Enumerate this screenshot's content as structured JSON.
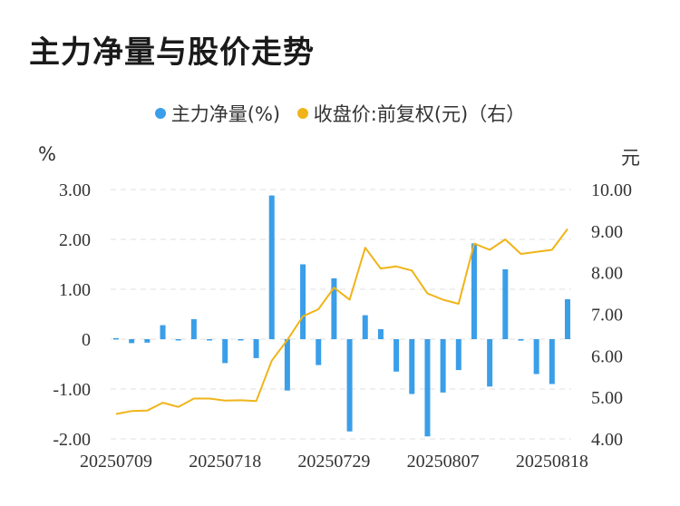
{
  "title": "主力净量与股价走势",
  "legend": {
    "bar_label": "主力净量(%)",
    "line_label": "收盘价:前复权(元)（右）"
  },
  "units": {
    "left": "%",
    "right": "元"
  },
  "colors": {
    "bar": "#3a9ee8",
    "line": "#f0b419",
    "grid": "#e5e5e5"
  },
  "chart_data": {
    "type": "bar+line",
    "x_tick_labels": [
      "20250709",
      "20250718",
      "20250729",
      "20250807",
      "20250818"
    ],
    "x_tick_indices": [
      0,
      7,
      14,
      21,
      28
    ],
    "left_axis": {
      "ylim": [
        -2,
        3
      ],
      "ticks": [
        3,
        2,
        1,
        0,
        -1,
        -2
      ],
      "tick_labels": [
        "3.00",
        "2.00",
        "1.00",
        "0",
        "-1.00",
        "-2.00"
      ]
    },
    "right_axis": {
      "ylim": [
        4,
        10
      ],
      "ticks": [
        10,
        9,
        8,
        7,
        6,
        5,
        4
      ],
      "tick_labels": [
        "10.00",
        "9.00",
        "8.00",
        "7.00",
        "6.00",
        "5.00",
        "4.00"
      ]
    },
    "series": [
      {
        "name": "主力净量(%)",
        "type": "bar",
        "axis": "left",
        "values": [
          0.02,
          -0.08,
          -0.07,
          0.28,
          -0.02,
          0.4,
          -0.02,
          -0.48,
          0.0,
          -0.38,
          2.88,
          -1.03,
          1.5,
          -0.52,
          1.22,
          -1.85,
          0.48,
          0.2,
          -0.65,
          -1.1,
          -1.95,
          -1.07,
          -0.62,
          1.92,
          -0.95,
          1.4,
          -0.03,
          -0.7,
          -0.9,
          0.8
        ]
      },
      {
        "name": "收盘价:前复权(元)（右）",
        "type": "line",
        "axis": "right",
        "values": [
          4.6,
          4.67,
          4.68,
          4.87,
          4.77,
          4.97,
          4.97,
          4.92,
          4.93,
          4.91,
          5.88,
          6.38,
          6.95,
          7.12,
          7.64,
          7.35,
          8.6,
          8.1,
          8.15,
          8.05,
          7.5,
          7.35,
          7.25,
          8.7,
          8.55,
          8.8,
          8.45,
          8.5,
          8.55,
          9.05
        ]
      }
    ]
  }
}
